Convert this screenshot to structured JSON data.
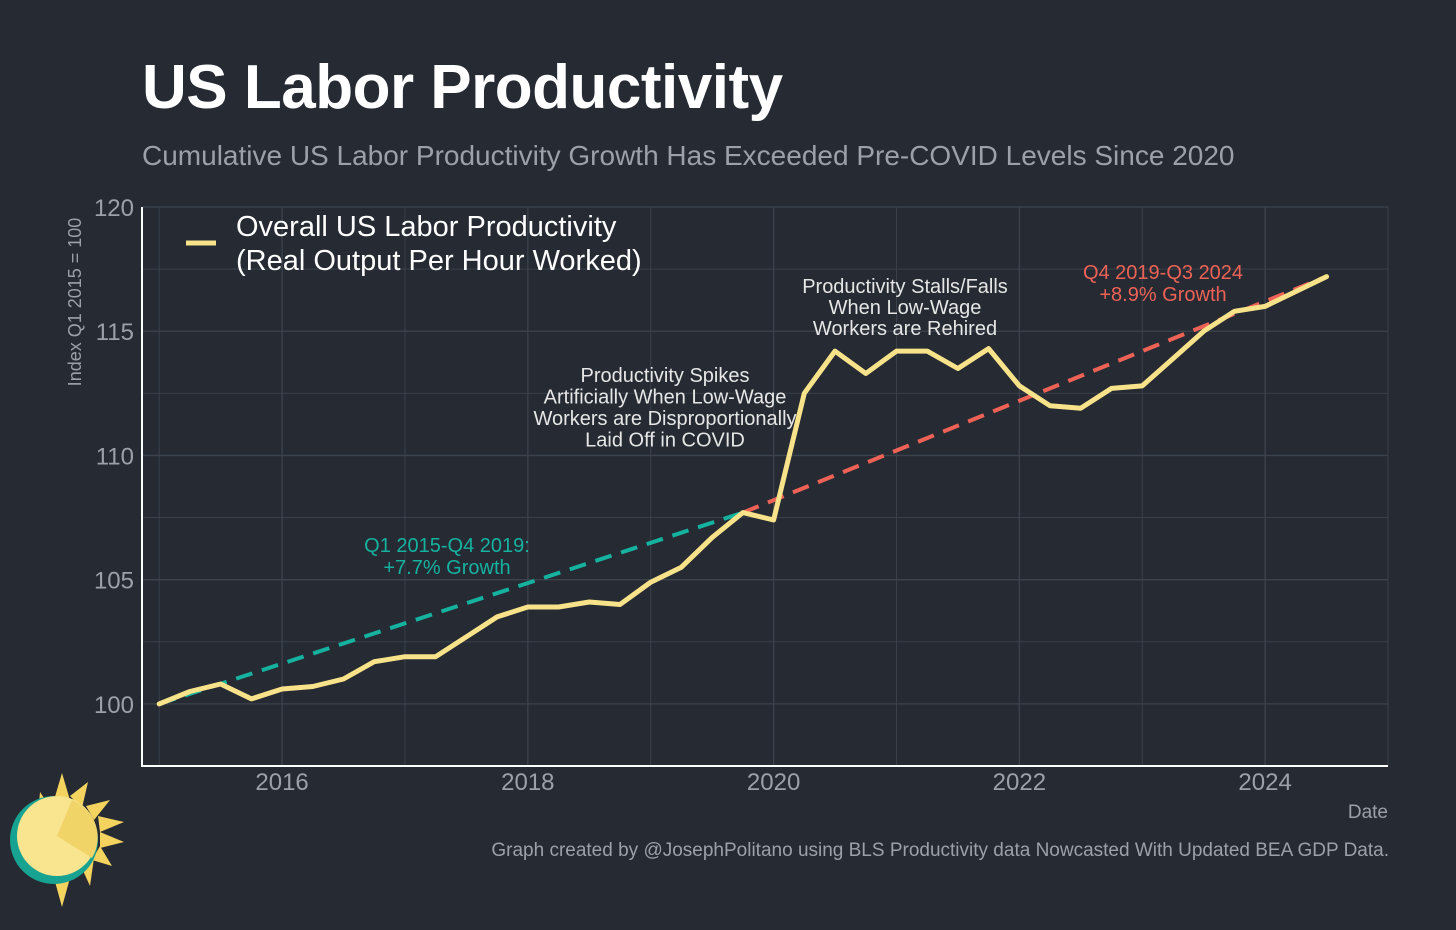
{
  "title": "US Labor Productivity",
  "subtitle": "Cumulative US Labor Productivity Growth Has Exceeded Pre-COVID Levels Since 2020",
  "caption": "Graph created by @JosephPolitano using BLS Productivity data Nowcasted With Updated BEA GDP Data.",
  "colors": {
    "background": "#252a33",
    "series": "#f8e28a",
    "trend_pre": "#15b2a0",
    "trend_post": "#ee6256",
    "grid": "#3d434d",
    "text": "#9ca0a8"
  },
  "chart_data": {
    "type": "line",
    "xlabel": "Date",
    "ylabel": "Index Q1 2015 = 100",
    "xlim": [
      2014.86,
      2025.0
    ],
    "ylim": [
      97.5,
      120
    ],
    "x_ticks": [
      2016,
      2018,
      2020,
      2022,
      2024
    ],
    "y_ticks": [
      100,
      105,
      110,
      115,
      120
    ],
    "grid": true,
    "legend_position": "top-left",
    "legend": [
      "Overall US Labor Productivity",
      "(Real Output Per Hour Worked)"
    ],
    "series": [
      {
        "name": "Overall US Labor Productivity (Real Output Per Hour Worked)",
        "x": [
          2015.0,
          2015.25,
          2015.5,
          2015.75,
          2016.0,
          2016.25,
          2016.5,
          2016.75,
          2017.0,
          2017.25,
          2017.5,
          2017.75,
          2018.0,
          2018.25,
          2018.5,
          2018.75,
          2019.0,
          2019.25,
          2019.5,
          2019.75,
          2020.0,
          2020.25,
          2020.5,
          2020.75,
          2021.0,
          2021.25,
          2021.5,
          2021.75,
          2022.0,
          2022.25,
          2022.5,
          2022.75,
          2023.0,
          2023.25,
          2023.5,
          2023.75,
          2024.0,
          2024.25,
          2024.5
        ],
        "values": [
          100.0,
          100.5,
          100.8,
          100.2,
          100.6,
          100.7,
          101.0,
          101.7,
          101.9,
          101.9,
          102.7,
          103.5,
          103.9,
          103.9,
          104.1,
          104.0,
          104.9,
          105.5,
          106.7,
          107.7,
          107.4,
          112.5,
          114.2,
          113.3,
          114.2,
          114.2,
          113.5,
          114.3,
          112.8,
          112.0,
          111.9,
          112.7,
          112.8,
          113.9,
          115.0,
          115.8,
          116.0,
          116.6,
          117.2
        ]
      }
    ],
    "trend_lines": [
      {
        "label": "Q1 2015-Q4 2019: +7.7% Growth",
        "x": [
          2015.0,
          2019.75
        ],
        "values": [
          100.0,
          107.7
        ],
        "style": "dashed"
      },
      {
        "label": "Q4 2019-Q3 2024 +8.9% Growth",
        "x": [
          2019.75,
          2024.5
        ],
        "values": [
          107.7,
          117.2
        ],
        "style": "dashed"
      }
    ],
    "annotations": {
      "pre_trend": [
        "Q1 2015-Q4 2019:",
        "+7.7% Growth"
      ],
      "post_trend": [
        "Q4 2019-Q3 2024",
        "+8.9% Growth"
      ],
      "covid_spike": [
        "Productivity Spikes",
        "Artificially When Low-Wage",
        "Workers are Disproportionally",
        "Laid Off in COVID"
      ],
      "stall": [
        "Productivity Stalls/Falls",
        "When Low-Wage",
        "Workers are Rehired"
      ]
    }
  }
}
